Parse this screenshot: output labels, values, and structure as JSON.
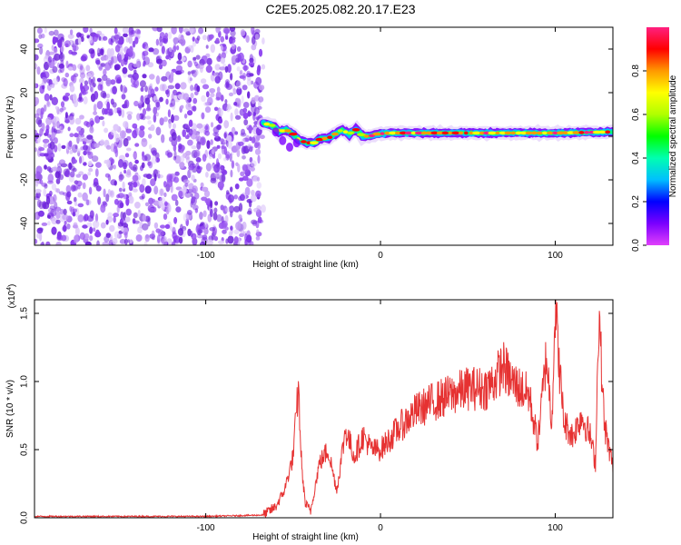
{
  "title": "C2E5.2025.082.20.17.E23",
  "chart_data": [
    {
      "type": "heatmap",
      "xlabel": "Height of straight line (km)",
      "ylabel": "Frequency (Hz)",
      "xlim": [
        -198,
        133
      ],
      "ylim": [
        -50,
        50
      ],
      "xticks": [
        -100,
        0,
        100
      ],
      "yticks": [
        -40,
        -20,
        0,
        20,
        40
      ],
      "noise_region_x": [
        -198,
        -67
      ],
      "signal_track": {
        "x": [
          -67,
          -62,
          -58,
          -54,
          -50,
          -46,
          -42,
          -38,
          -34,
          -30,
          -26,
          -22,
          -18,
          -14,
          -10,
          -6,
          -2,
          5,
          20,
          40,
          60,
          80,
          100,
          120,
          133
        ],
        "freq": [
          6,
          5,
          2,
          3,
          1,
          -2,
          -3,
          -3,
          -1,
          -1,
          1,
          3,
          1,
          3,
          0,
          0,
          1,
          1.5,
          1.5,
          1.5,
          1.5,
          1.5,
          1.5,
          1.8,
          2
        ]
      },
      "colorbar": {
        "label": "Normalized spectral amplitude",
        "ticks": [
          0.0,
          0.2,
          0.4,
          0.6,
          0.8
        ],
        "tick_labels": [
          "0.0",
          "0.2",
          "0.4",
          "0.6",
          "0.8"
        ],
        "range": [
          0,
          1
        ]
      }
    },
    {
      "type": "line",
      "xlabel": "Height of straight line (km)",
      "ylabel": "SNR (10 * v/v)",
      "yscale_note": "(x10",
      "yscale_exp": "4",
      "yscale_close": ")",
      "xlim": [
        -198,
        133
      ],
      "ylim": [
        0,
        1.6
      ],
      "xticks": [
        -100,
        0,
        100
      ],
      "yticks": [
        0.0,
        0.5,
        1.0,
        1.5
      ],
      "ytick_labels": [
        "0.0",
        "0.5",
        "1.0",
        "1.5"
      ],
      "color": "#e63232",
      "series": [
        {
          "x": [
            -198,
            -150,
            -100,
            -67,
            -60,
            -55,
            -50,
            -47,
            -45,
            -43,
            -40,
            -35,
            -30,
            -25,
            -20,
            -15,
            -10,
            -5,
            0,
            10,
            20,
            30,
            40,
            50,
            60,
            65,
            70,
            75,
            80,
            85,
            90,
            95,
            98,
            100,
            103,
            105,
            110,
            115,
            120,
            123,
            125,
            128,
            130,
            133
          ],
          "y": [
            0.01,
            0.01,
            0.01,
            0.02,
            0.08,
            0.2,
            0.45,
            0.95,
            0.35,
            0.1,
            0.05,
            0.4,
            0.5,
            0.2,
            0.65,
            0.45,
            0.6,
            0.5,
            0.5,
            0.65,
            0.78,
            0.85,
            0.9,
            0.95,
            0.95,
            1.0,
            1.12,
            1.0,
            0.95,
            0.9,
            0.55,
            1.2,
            0.7,
            1.55,
            1.0,
            0.7,
            0.6,
            0.75,
            0.6,
            0.4,
            1.52,
            0.7,
            0.55,
            0.38
          ]
        }
      ]
    }
  ],
  "colors": {
    "line": "#e63232",
    "noise": "#7a2ee6",
    "colormap": [
      "#e040fb",
      "#7a00ff",
      "#0000ff",
      "#00bfff",
      "#00ffb0",
      "#00ff00",
      "#b0ff00",
      "#ffff00",
      "#ff9900",
      "#ff0000",
      "#ff2080"
    ]
  }
}
